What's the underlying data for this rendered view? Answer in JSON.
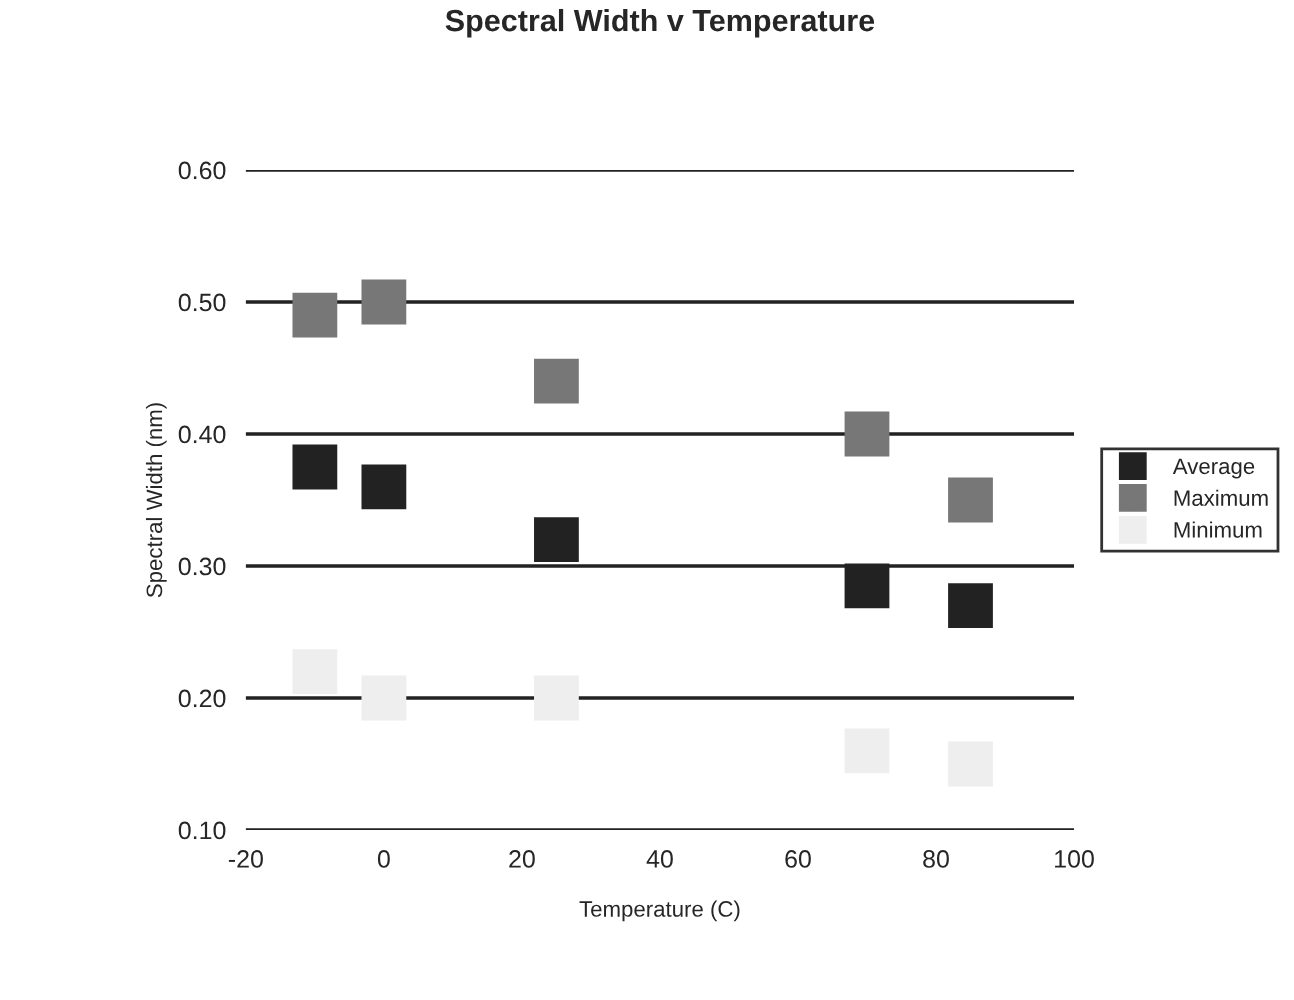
{
  "chart_data": {
    "type": "scatter",
    "title": "Spectral Width v Temperature",
    "xlabel": "Temperature (C)",
    "ylabel": "Spectral Width (nm)",
    "x": [
      -10,
      0,
      25,
      70,
      85
    ],
    "series": [
      {
        "name": "Average",
        "color": "#222222",
        "values": [
          0.375,
          0.36,
          0.32,
          0.285,
          0.27
        ]
      },
      {
        "name": "Maximum",
        "color": "#777777",
        "values": [
          0.49,
          0.5,
          0.44,
          0.4,
          0.35
        ]
      },
      {
        "name": "Minimum",
        "color": "#eeeeee",
        "values": [
          0.22,
          0.2,
          0.2,
          0.16,
          0.15
        ]
      }
    ],
    "xlim": [
      -20,
      100
    ],
    "xticks": [
      -20,
      0,
      20,
      40,
      60,
      80,
      100
    ],
    "ylim": [
      0.1,
      0.6
    ],
    "yticks": [
      {
        "value": 0.1,
        "label": "0.10"
      },
      {
        "value": 0.2,
        "label": "0.20"
      },
      {
        "value": 0.3,
        "label": "0.30"
      },
      {
        "value": 0.4,
        "label": "0.40"
      },
      {
        "value": 0.5,
        "label": "0.50"
      },
      {
        "value": 0.6,
        "label": "0.60"
      }
    ],
    "grid": "y",
    "legend": "right",
    "marker": "square"
  }
}
